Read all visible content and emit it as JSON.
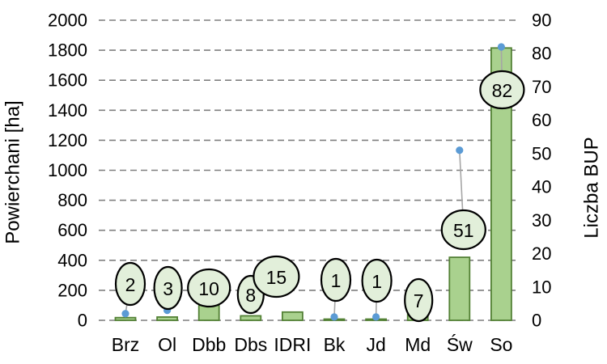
{
  "chart_data": {
    "type": "bar",
    "title": "",
    "legend": "none",
    "categories": [
      "Brz",
      "Ol",
      "Dbb",
      "Dbs",
      "IDRI",
      "Bk",
      "Jd",
      "Md",
      "Św",
      "So"
    ],
    "series": [
      {
        "name": "Powierchani [ha]",
        "type": "bar",
        "axis": "left",
        "values": [
          18,
          22,
          100,
          30,
          55,
          8,
          8,
          45,
          420,
          1815
        ]
      },
      {
        "name": "Liczba BUP",
        "type": "scatter",
        "axis": "right",
        "values": [
          2,
          3,
          10,
          8,
          15,
          1,
          1,
          7,
          51,
          82
        ],
        "data_labels": [
          "2",
          "3",
          "10",
          "8",
          "15",
          "1",
          "1",
          "7",
          "51",
          "82"
        ]
      }
    ],
    "left_axis": {
      "label": "Powierchani [ha]",
      "min": 0,
      "max": 2000,
      "step": 200,
      "ticks": [
        "0",
        "200",
        "400",
        "600",
        "800",
        "1000",
        "1200",
        "1400",
        "1600",
        "1800",
        "2000"
      ]
    },
    "right_axis": {
      "label": "Liczba BUP",
      "min": 0,
      "max": 90,
      "step": 10,
      "ticks": [
        "0",
        "10",
        "20",
        "30",
        "40",
        "50",
        "60",
        "70",
        "80",
        "90"
      ]
    },
    "gridlines": {
      "style": "dashed",
      "orientation": "horizontal",
      "color": "#7f7f7f"
    },
    "colors": {
      "bar_fill": "#a9d18e",
      "bar_stroke": "#538135",
      "point": "#5b9bd5",
      "callout_fill": "#e2efda",
      "callout_stroke": "#000000",
      "leader_line": "#a6a6a6",
      "text": "#000000",
      "background": "#ffffff"
    }
  }
}
